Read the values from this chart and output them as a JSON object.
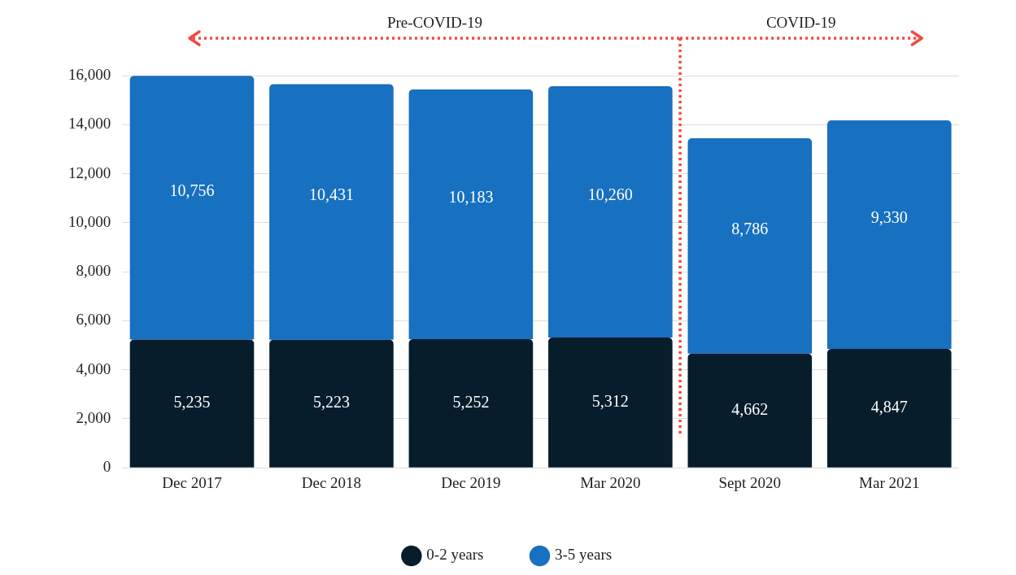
{
  "chart_data": {
    "type": "bar",
    "stacked": true,
    "categories": [
      "Dec 2017",
      "Dec 2018",
      "Dec 2019",
      "Mar 2020",
      "Sept 2020",
      "Mar 2021"
    ],
    "series": [
      {
        "name": "0-2 years",
        "color": "#071d2c",
        "values": [
          5235,
          5223,
          5252,
          5312,
          4662,
          4847
        ],
        "value_labels": [
          "5,235",
          "5,223",
          "5,252",
          "5,312",
          "4,662",
          "4,847"
        ]
      },
      {
        "name": "3-5 years",
        "color": "#1770c0",
        "values": [
          10756,
          10431,
          10183,
          10260,
          8786,
          9330
        ],
        "value_labels": [
          "10,756",
          "10,431",
          "10,183",
          "10,260",
          "8,786",
          "9,330"
        ]
      }
    ],
    "ylim": [
      0,
      16000
    ],
    "yticks": [
      {
        "value": 0,
        "label": "0"
      },
      {
        "value": 2000,
        "label": "2,000"
      },
      {
        "value": 4000,
        "label": "4,000"
      },
      {
        "value": 6000,
        "label": "6,000"
      },
      {
        "value": 8000,
        "label": "8,000"
      },
      {
        "value": 10000,
        "label": "10,000"
      },
      {
        "value": 12000,
        "label": "12,000"
      },
      {
        "value": 14000,
        "label": "14,000"
      },
      {
        "value": 16000,
        "label": "16,000"
      }
    ],
    "grid": "y",
    "legend": "bottom",
    "ref_lines": [
      {
        "axis": "x",
        "value": "Sept 2020",
        "color": "#f04a3e",
        "line_style": "dotted"
      }
    ],
    "annotations": [
      "Pre-COVID-19",
      "COVID-19"
    ]
  }
}
